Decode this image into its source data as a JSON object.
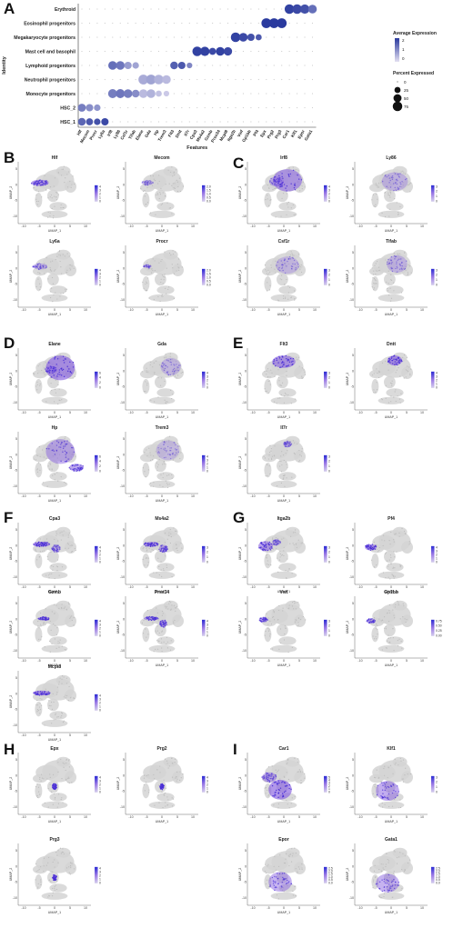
{
  "panels": [
    "A",
    "B",
    "C",
    "D",
    "E",
    "F",
    "G",
    "H",
    "I"
  ],
  "chart_data": [
    {
      "type": "scatter",
      "panel": "A",
      "ylabel": "Identity",
      "xlabel": "Features",
      "rows": [
        "HSC_1",
        "HSC_2",
        "Monocyte progenitors",
        "Neutrophil progenitors",
        "Lymphoid progenitors",
        "Mast cell and basophil",
        "Megakaryocyte progenitors",
        "Eosinophil progenitors",
        "Erythroid"
      ],
      "genes": [
        "Hlf",
        "Mecom",
        "Procr",
        "Ly6a",
        "Irf8",
        "Ly86",
        "Csf1r",
        "Tifab",
        "Elane",
        "Gda",
        "Hp",
        "Trem3",
        "Flt3",
        "Dntt",
        "Il7r",
        "Cpa3",
        "Ms4a2",
        "Gzmb",
        "Prss34",
        "Mcpt8",
        "Itga2b",
        "Vwf",
        "Gp1bb",
        "Pf4",
        "Epx",
        "Prg2",
        "Prg3",
        "Car1",
        "Klf1",
        "Epor",
        "Gata1"
      ],
      "legend": {
        "color_title": "Average Expression",
        "color_ticks": [
          "2",
          "1",
          "0"
        ],
        "size_title": "Percent Expressed",
        "size_ticks": [
          "0",
          "25",
          "50",
          "75"
        ]
      },
      "dots": [
        {
          "row": 0,
          "gene": 0,
          "pct": 45,
          "exp": 1.6
        },
        {
          "row": 0,
          "gene": 1,
          "pct": 35,
          "exp": 1.8
        },
        {
          "row": 0,
          "gene": 2,
          "pct": 30,
          "exp": 1.9
        },
        {
          "row": 0,
          "gene": 3,
          "pct": 40,
          "exp": 2.0
        },
        {
          "row": 1,
          "gene": 0,
          "pct": 50,
          "exp": 1.3
        },
        {
          "row": 1,
          "gene": 1,
          "pct": 40,
          "exp": 1.1
        },
        {
          "row": 1,
          "gene": 2,
          "pct": 30,
          "exp": 1.0
        },
        {
          "row": 2,
          "gene": 4,
          "pct": 65,
          "exp": 1.3
        },
        {
          "row": 2,
          "gene": 5,
          "pct": 65,
          "exp": 1.4
        },
        {
          "row": 2,
          "gene": 6,
          "pct": 60,
          "exp": 1.3
        },
        {
          "row": 2,
          "gene": 7,
          "pct": 45,
          "exp": 1.1
        },
        {
          "row": 2,
          "gene": 8,
          "pct": 60,
          "exp": 0.5
        },
        {
          "row": 2,
          "gene": 9,
          "pct": 60,
          "exp": 0.6
        },
        {
          "row": 2,
          "gene": 10,
          "pct": 25,
          "exp": 0.4
        },
        {
          "row": 2,
          "gene": 11,
          "pct": 20,
          "exp": 0.3
        },
        {
          "row": 3,
          "gene": 8,
          "pct": 80,
          "exp": 0.7
        },
        {
          "row": 3,
          "gene": 9,
          "pct": 80,
          "exp": 0.8
        },
        {
          "row": 3,
          "gene": 10,
          "pct": 75,
          "exp": 0.6
        },
        {
          "row": 3,
          "gene": 11,
          "pct": 60,
          "exp": 0.5
        },
        {
          "row": 4,
          "gene": 4,
          "pct": 60,
          "exp": 1.5
        },
        {
          "row": 4,
          "gene": 5,
          "pct": 60,
          "exp": 1.4
        },
        {
          "row": 4,
          "gene": 6,
          "pct": 40,
          "exp": 0.9
        },
        {
          "row": 4,
          "gene": 7,
          "pct": 30,
          "exp": 0.8
        },
        {
          "row": 4,
          "gene": 12,
          "pct": 45,
          "exp": 1.7
        },
        {
          "row": 4,
          "gene": 13,
          "pct": 40,
          "exp": 1.8
        },
        {
          "row": 4,
          "gene": 14,
          "pct": 20,
          "exp": 1.2
        },
        {
          "row": 5,
          "gene": 15,
          "pct": 75,
          "exp": 2.1
        },
        {
          "row": 5,
          "gene": 16,
          "pct": 70,
          "exp": 2.1
        },
        {
          "row": 5,
          "gene": 17,
          "pct": 35,
          "exp": 2.0
        },
        {
          "row": 5,
          "gene": 18,
          "pct": 60,
          "exp": 2.1
        },
        {
          "row": 5,
          "gene": 19,
          "pct": 55,
          "exp": 2.0
        },
        {
          "row": 6,
          "gene": 20,
          "pct": 75,
          "exp": 2.1
        },
        {
          "row": 6,
          "gene": 21,
          "pct": 60,
          "exp": 2.0
        },
        {
          "row": 6,
          "gene": 22,
          "pct": 40,
          "exp": 1.9
        },
        {
          "row": 6,
          "gene": 23,
          "pct": 25,
          "exp": 1.8
        },
        {
          "row": 7,
          "gene": 24,
          "pct": 80,
          "exp": 2.2
        },
        {
          "row": 7,
          "gene": 25,
          "pct": 80,
          "exp": 2.2
        },
        {
          "row": 7,
          "gene": 26,
          "pct": 80,
          "exp": 2.2
        },
        {
          "row": 8,
          "gene": 27,
          "pct": 75,
          "exp": 2.1
        },
        {
          "row": 8,
          "gene": 28,
          "pct": 75,
          "exp": 2.0
        },
        {
          "row": 8,
          "gene": 29,
          "pct": 70,
          "exp": 1.9
        },
        {
          "row": 8,
          "gene": 30,
          "pct": 60,
          "exp": 1.5
        }
      ]
    }
  ],
  "umap": {
    "xlabel": "UMAP_1",
    "ylabel": "UMAP_2",
    "x_ticks": [
      "-10",
      "-5",
      "0",
      "5",
      "10"
    ],
    "y_ticks": [
      "5",
      "0",
      "-5",
      "-10"
    ],
    "plots": [
      {
        "panel": "B",
        "gene": "Hlf",
        "legend": [
          "4",
          "3",
          "2",
          "1",
          "0"
        ]
      },
      {
        "panel": "B",
        "gene": "Mecom",
        "legend": [
          "2.0",
          "1.5",
          "1.0",
          "0.5",
          "0.0"
        ]
      },
      {
        "panel": "B",
        "gene": "Ly6a",
        "legend": [
          "4",
          "3",
          "2",
          "1",
          "0"
        ]
      },
      {
        "panel": "B",
        "gene": "Procr",
        "legend": [
          "2.0",
          "1.5",
          "1.0",
          "0.5",
          "0.0"
        ]
      },
      {
        "panel": "C",
        "gene": "Irf8",
        "legend": [
          "4",
          "3",
          "2",
          "1",
          "0"
        ]
      },
      {
        "panel": "C",
        "gene": "Ly86",
        "legend": [
          "3",
          "2",
          "1",
          "0"
        ]
      },
      {
        "panel": "C",
        "gene": "Csf1r",
        "legend": [
          "3",
          "2",
          "1",
          "0"
        ]
      },
      {
        "panel": "C",
        "gene": "Tifab",
        "legend": [
          "3",
          "2",
          "1",
          "0"
        ]
      },
      {
        "panel": "D",
        "gene": "Elane",
        "legend": [
          "6",
          "4",
          "2",
          "0"
        ]
      },
      {
        "panel": "D",
        "gene": "Gda",
        "legend": [
          "4",
          "3",
          "2",
          "1",
          "0"
        ]
      },
      {
        "panel": "D",
        "gene": "Hp",
        "legend": [
          "6",
          "4",
          "2",
          "0"
        ]
      },
      {
        "panel": "D",
        "gene": "Trem3",
        "legend": [
          "4",
          "3",
          "2",
          "1",
          "0"
        ]
      },
      {
        "panel": "E",
        "gene": "Flt3",
        "legend": [
          "3",
          "2",
          "1",
          "0"
        ]
      },
      {
        "panel": "E",
        "gene": "Dntt",
        "legend": [
          "4",
          "3",
          "2",
          "1",
          "0"
        ]
      },
      {
        "panel": "E",
        "gene": "Il7r",
        "legend": [
          "3",
          "2",
          "1",
          "0"
        ]
      },
      {
        "panel": "F",
        "gene": "Cpa3",
        "legend": [
          "4",
          "3",
          "2",
          "1",
          "0"
        ]
      },
      {
        "panel": "F",
        "gene": "Ms4a2",
        "legend": [
          "3",
          "2",
          "1",
          "0"
        ]
      },
      {
        "panel": "F",
        "gene": "Gzmb",
        "legend": [
          "4",
          "3",
          "2",
          "1",
          "0"
        ]
      },
      {
        "panel": "F",
        "gene": "Prss34",
        "legend": [
          "4",
          "3",
          "2",
          "1",
          "0"
        ]
      },
      {
        "panel": "F",
        "gene": "Mcpt8",
        "legend": [
          "4",
          "3",
          "2",
          "1",
          "0"
        ]
      },
      {
        "panel": "G",
        "gene": "Itga2b",
        "legend": [
          "3",
          "2",
          "1",
          "0"
        ]
      },
      {
        "panel": "G",
        "gene": "Pf4",
        "legend": [
          "4",
          "3",
          "2",
          "1",
          "0"
        ]
      },
      {
        "panel": "G",
        "gene": "Vwf",
        "legend": [
          "3",
          "2",
          "1",
          "0"
        ]
      },
      {
        "panel": "G",
        "gene": "Gp1bb",
        "legend": [
          "0.75",
          "0.50",
          "0.25",
          "0.00"
        ]
      },
      {
        "panel": "H",
        "gene": "Epx",
        "legend": [
          "4",
          "3",
          "2",
          "1",
          "0"
        ]
      },
      {
        "panel": "H",
        "gene": "Prg2",
        "legend": [
          "4",
          "3",
          "2",
          "1",
          "0"
        ]
      },
      {
        "panel": "H",
        "gene": "Prg3",
        "legend": [
          "4",
          "3",
          "2",
          "1",
          "0"
        ]
      },
      {
        "panel": "I",
        "gene": "Car1",
        "legend": [
          "5",
          "4",
          "3",
          "2",
          "1",
          "0"
        ]
      },
      {
        "panel": "I",
        "gene": "Klf1",
        "legend": [
          "3",
          "2",
          "1",
          "0"
        ]
      },
      {
        "panel": "I",
        "gene": "Epor",
        "legend": [
          "2.5",
          "2.0",
          "1.5",
          "1.0",
          "0.5",
          "0.0"
        ]
      },
      {
        "panel": "I",
        "gene": "Gata1",
        "legend": [
          "2.5",
          "2.0",
          "1.5",
          "1.0",
          "0.5",
          "0.0"
        ]
      }
    ]
  },
  "colors": {
    "high": "#2b2bd4",
    "mid": "#9c7ae6",
    "low": "#d6d0ec",
    "grey": "#cfcfcf"
  }
}
